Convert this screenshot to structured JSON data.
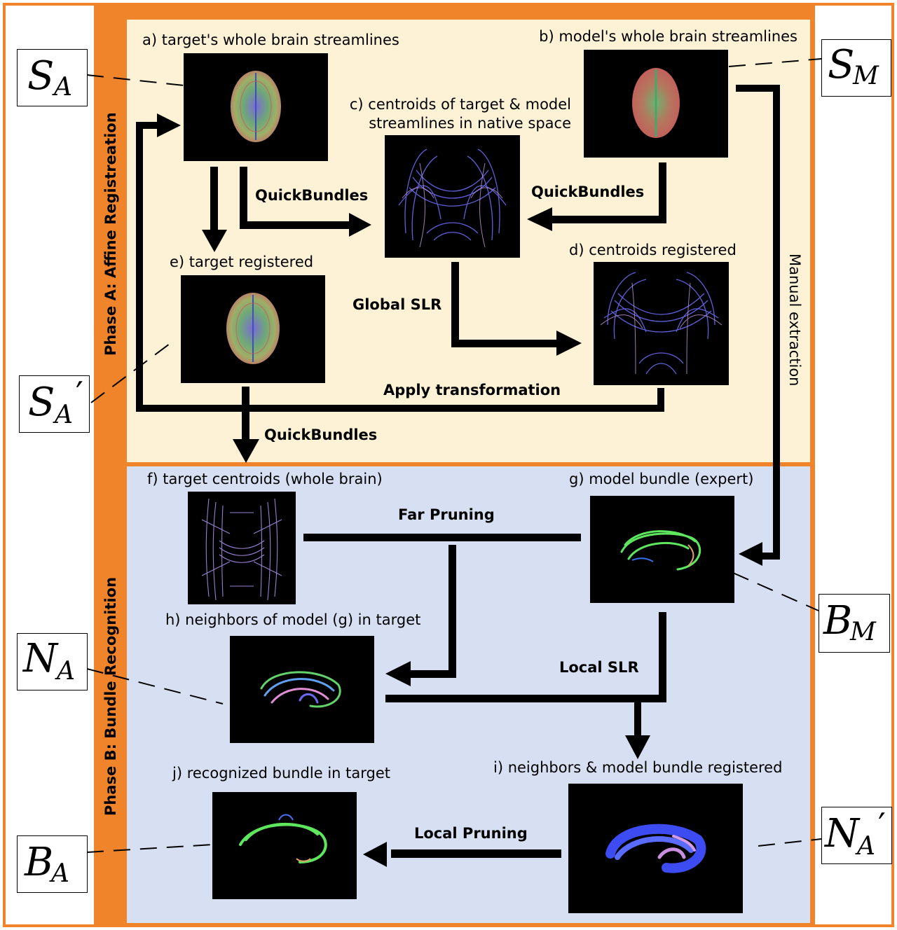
{
  "phases": {
    "a": "Phase A: Affine Registreation",
    "b": "Phase B: Bundle Recognition"
  },
  "panels": {
    "a": "a) target's whole brain streamlines",
    "b": "b) model's whole brain streamlines",
    "c_line1": "c) centroids of target & model",
    "c_line2": "streamlines in native space",
    "d": "d) centroids registered",
    "e": "e) target registered",
    "f": "f) target centroids (whole brain)",
    "g": "g) model bundle (expert)",
    "h": "h) neighbors of model (g) in target",
    "i": "i) neighbors & model bundle registered",
    "j": "j) recognized bundle in target"
  },
  "steps": {
    "qb_target": "QuickBundles",
    "qb_model": "QuickBundles",
    "global_slr": "Global SLR",
    "apply_transform": "Apply transformation",
    "qb_registered": "QuickBundles",
    "manual_extraction": "Manual extraction",
    "far_pruning": "Far Pruning",
    "local_slr": "Local SLR",
    "local_pruning": "Local Pruning"
  },
  "symbols": {
    "sa": {
      "main": "S",
      "sub": "A",
      "prime": ""
    },
    "sm": {
      "main": "S",
      "sub": "M",
      "prime": ""
    },
    "sa_prime": {
      "main": "S",
      "sub": "A",
      "prime": "′"
    },
    "bm": {
      "main": "B",
      "sub": "M",
      "prime": ""
    },
    "na": {
      "main": "N",
      "sub": "A",
      "prime": ""
    },
    "na_prime": {
      "main": "N",
      "sub": "A",
      "prime": "′"
    },
    "ba": {
      "main": "B",
      "sub": "A",
      "prime": ""
    }
  },
  "colors": {
    "frame": "#f0842a",
    "phase_a_bg": "#fdf2d6",
    "phase_b_bg": "#d6e0f2",
    "arrow": "#000000"
  }
}
